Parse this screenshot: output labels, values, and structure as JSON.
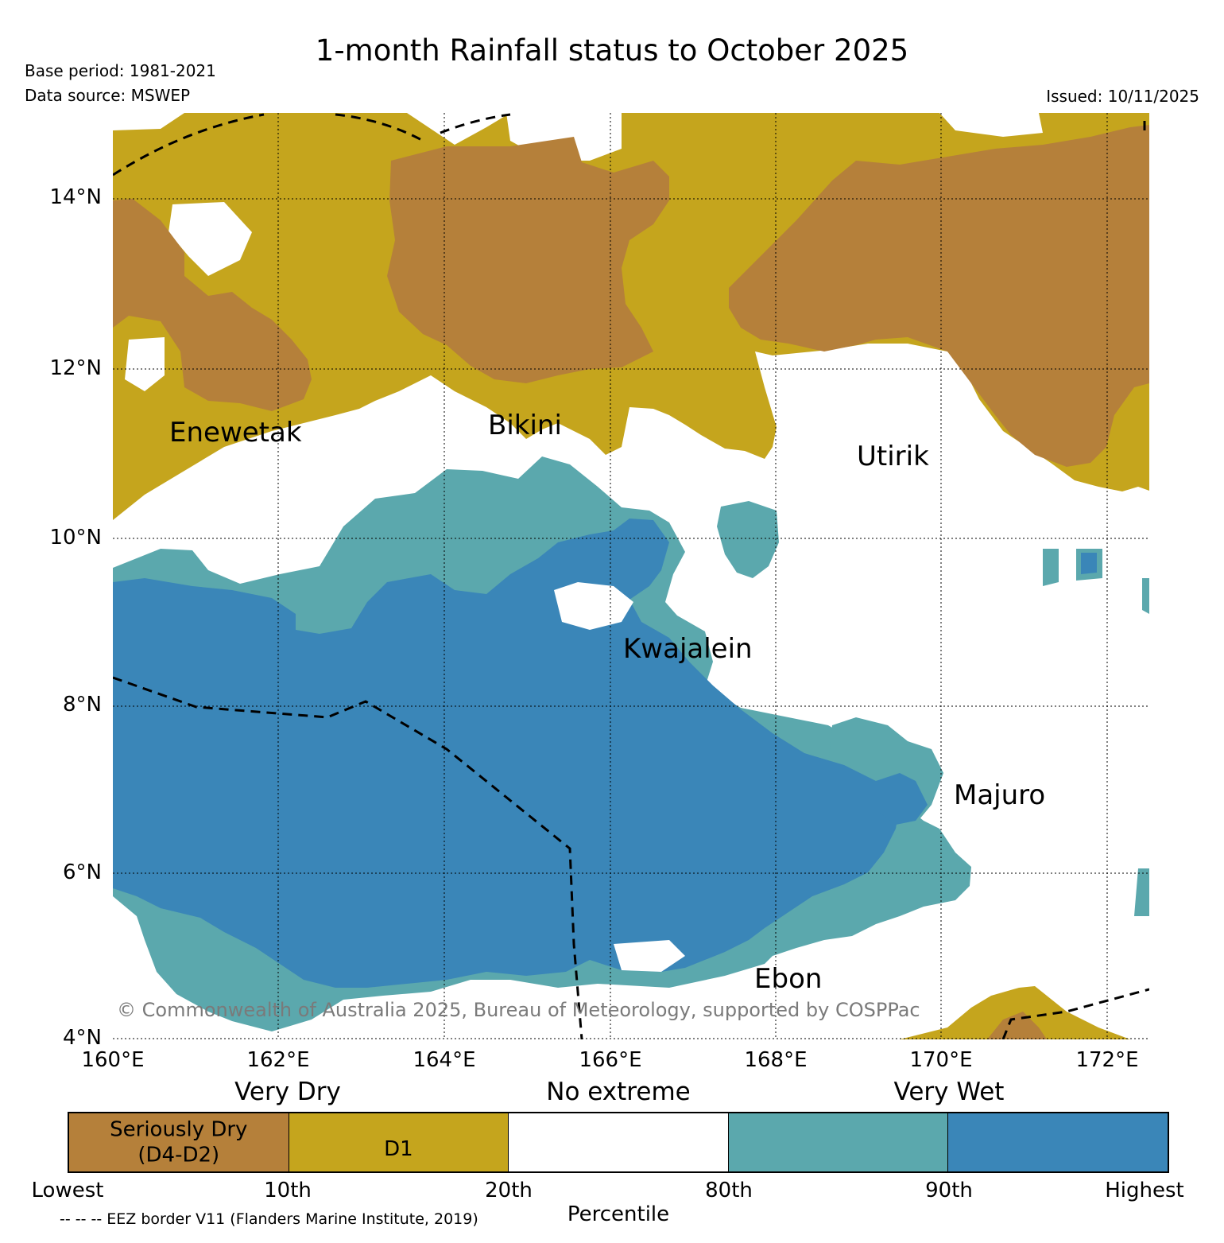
{
  "header": {
    "title": "1-month Rainfall status to October 2025",
    "base_period": "Base period: 1981-2021",
    "data_source": "Data source: MSWEP",
    "issued": "Issued: 10/11/2025"
  },
  "map": {
    "copyright": "© Commonwealth of Australia 2025, Bureau of Meteorology, supported by COSPPac",
    "lon_range": [
      160,
      172.5
    ],
    "lat_range": [
      4,
      15
    ],
    "x_ticks": [
      "160°E",
      "162°E",
      "164°E",
      "166°E",
      "168°E",
      "170°E",
      "172°E"
    ],
    "y_ticks": [
      "4°N",
      "6°N",
      "8°N",
      "10°N",
      "12°N",
      "14°N"
    ],
    "places": [
      {
        "name": "Enewetak",
        "lon": 162.3,
        "lat": 11.35
      },
      {
        "name": "Bikini",
        "lon": 165.5,
        "lat": 11.6
      },
      {
        "name": "Utirik",
        "lon": 169.85,
        "lat": 11.2
      },
      {
        "name": "Kwajalein",
        "lon": 167.7,
        "lat": 8.72
      },
      {
        "name": "Majuro",
        "lon": 171.25,
        "lat": 7.08
      },
      {
        "name": "Ebon",
        "lon": 168.8,
        "lat": 4.62
      }
    ],
    "colors": {
      "seriously_dry": "#b5803a",
      "d1": "#c5a51d",
      "no_extreme": "#ffffff",
      "very_wet": "#5ba8ad",
      "highest": "#3a86b8"
    }
  },
  "legend": {
    "categories": [
      "Very Dry",
      "No extreme",
      "Very Wet"
    ],
    "segments": [
      {
        "label": "Seriously Dry\n(D4-D2)",
        "color": "#b5803a"
      },
      {
        "label": "D1",
        "color": "#c5a51d"
      },
      {
        "label": "",
        "color": "#ffffff"
      },
      {
        "label": "",
        "color": "#5ba8ad"
      },
      {
        "label": "",
        "color": "#3a86b8"
      }
    ],
    "ticks": [
      "Lowest",
      "10th",
      "20th",
      "80th",
      "90th",
      "Highest"
    ],
    "axis_label": "Percentile",
    "eez_note": "-- -- -- EEZ border V11 (Flanders Marine Institute, 2019)"
  }
}
